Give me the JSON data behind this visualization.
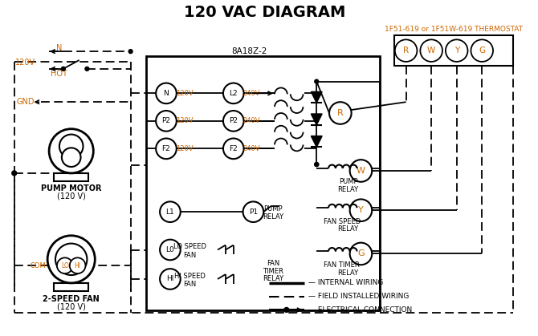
{
  "title": "120 VAC DIAGRAM",
  "bg_color": "#ffffff",
  "orange_color": "#cc6600",
  "thermostat_label": "1F51-619 or 1F51W-619 THERMOSTAT",
  "box8a_label": "8A18Z-2",
  "N_label": "N",
  "HOT_label": "HOT",
  "v120_label": "120V",
  "GND_label": "GND",
  "pump_motor_label1": "PUMP MOTOR",
  "pump_motor_label2": "(120 V)",
  "fan_label1": "2-SPEED FAN",
  "fan_label2": "(120 V)",
  "COM_label": "COM",
  "internal_wiring": "INTERNAL WIRING",
  "field_wiring": "FIELD INSTALLED WIRING",
  "elec_conn": "ELECTRICAL CONNECTION"
}
